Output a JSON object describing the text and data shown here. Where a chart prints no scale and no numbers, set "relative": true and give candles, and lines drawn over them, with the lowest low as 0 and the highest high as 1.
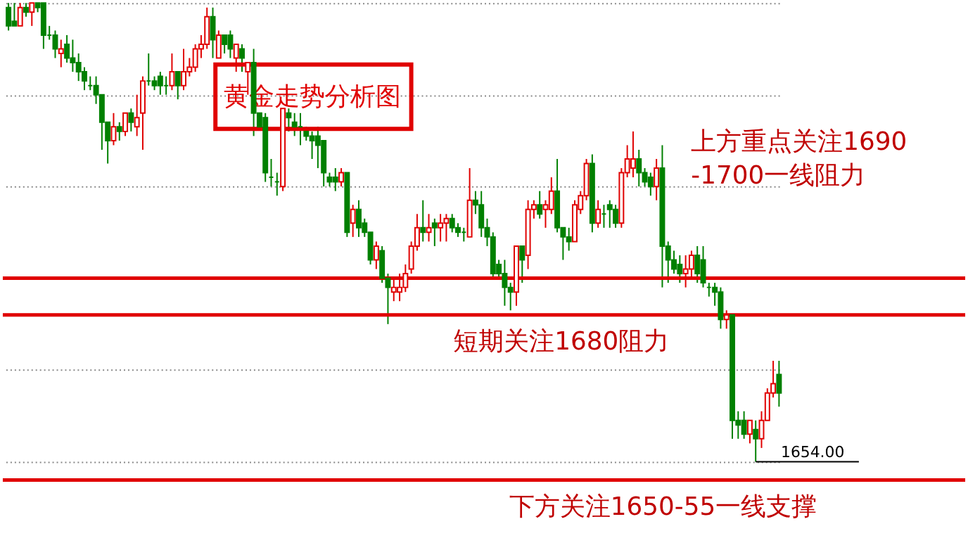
{
  "chart_data": {
    "type": "candlestick",
    "title": "黄金走势分析图",
    "relative": true,
    "tick_labels": false,
    "grid": "y",
    "categories": [
      null,
      null,
      null,
      null,
      null,
      null,
      null,
      null,
      null,
      null,
      null,
      null,
      null,
      null,
      null,
      null,
      null,
      null,
      null,
      null,
      null,
      null,
      null,
      null,
      null,
      null,
      null,
      null,
      null,
      null,
      null,
      null,
      null,
      null,
      null,
      null,
      null,
      null,
      null,
      null,
      null,
      null,
      null,
      null,
      null,
      null,
      null,
      null,
      null,
      null,
      null,
      null,
      null,
      null,
      null,
      null,
      null,
      null,
      null,
      null,
      null,
      null,
      null,
      null,
      null,
      null,
      null,
      null,
      null,
      null,
      null,
      null,
      null,
      null,
      null,
      null,
      null,
      null,
      null,
      null,
      null,
      null,
      null,
      null,
      null,
      null,
      null,
      null,
      null,
      null,
      null,
      null,
      null,
      null,
      null,
      null,
      null,
      null,
      null,
      null,
      null,
      null,
      null,
      null,
      null,
      null,
      null,
      null,
      null,
      null,
      null,
      null,
      null,
      null,
      null,
      null,
      null,
      null,
      null,
      null,
      null,
      null,
      null,
      null,
      null,
      null,
      null,
      null,
      null,
      null,
      null,
      null,
      null
    ],
    "ohlc": [
      [
        0.99,
        1,
        0.94,
        0.95
      ],
      [
        0.96,
        1,
        0.95,
        0.95
      ],
      [
        0.95,
        1,
        0.95,
        0.99
      ],
      [
        0.99,
        1,
        0.97,
        0.98
      ],
      [
        0.98,
        1,
        0.95,
        1
      ],
      [
        1,
        1,
        0.98,
        0.99
      ],
      [
        1,
        1,
        0.9,
        0.93
      ],
      [
        0.93,
        0.95,
        0.92,
        0.93
      ],
      [
        0.93,
        0.94,
        0.88,
        0.9
      ],
      [
        0.89,
        0.92,
        0.86,
        0.9
      ],
      [
        0.91,
        0.93,
        0.87,
        0.88
      ],
      [
        0.88,
        0.92,
        0.85,
        0.87
      ],
      [
        0.87,
        0.89,
        0.83,
        0.85
      ],
      [
        0.85,
        0.86,
        0.81,
        0.83
      ],
      [
        0.82,
        0.84,
        0.81,
        0.82
      ],
      [
        0.82,
        0.84,
        0.78,
        0.8
      ],
      [
        0.8,
        0.8,
        0.68,
        0.74
      ],
      [
        0.74,
        0.74,
        0.65,
        0.7
      ],
      [
        0.7,
        0.76,
        0.69,
        0.73
      ],
      [
        0.73,
        0.74,
        0.7,
        0.72
      ],
      [
        0.72,
        0.76,
        0.71,
        0.76
      ],
      [
        0.76,
        0.77,
        0.72,
        0.74
      ],
      [
        0.73,
        0.8,
        0.71,
        0.75
      ],
      [
        0.76,
        0.84,
        0.68,
        0.83
      ],
      [
        0.83,
        0.89,
        0.82,
        0.83
      ],
      [
        0.83,
        0.84,
        0.81,
        0.82
      ],
      [
        0.84,
        0.85,
        0.8,
        0.82
      ],
      [
        0.82,
        0.84,
        0.8,
        0.82
      ],
      [
        0.82,
        0.89,
        0.81,
        0.85
      ],
      [
        0.85,
        0.85,
        0.79,
        0.82
      ],
      [
        0.82,
        0.9,
        0.81,
        0.85
      ],
      [
        0.85,
        0.88,
        0.84,
        0.86
      ],
      [
        0.86,
        0.91,
        0.85,
        0.9
      ],
      [
        0.9,
        0.93,
        0.88,
        0.91
      ],
      [
        0.91,
        0.99,
        0.9,
        0.97
      ],
      [
        0.97,
        0.99,
        0.88,
        0.92
      ],
      [
        0.88,
        0.94,
        0.88,
        0.93
      ],
      [
        0.93,
        0.93,
        0.89,
        0.91
      ],
      [
        0.93,
        0.94,
        0.88,
        0.9
      ],
      [
        0.88,
        0.91,
        0.85,
        0.91
      ],
      [
        0.9,
        0.91,
        0.85,
        0.88
      ],
      [
        0.85,
        0.87,
        0.8,
        0.87
      ],
      [
        0.87,
        0.9,
        0.71,
        0.76
      ],
      [
        0.76,
        0.76,
        0.73,
        0.73
      ],
      [
        0.75,
        0.76,
        0.61,
        0.63
      ],
      [
        0.62,
        0.66,
        0.6,
        0.62
      ],
      [
        0.61,
        0.63,
        0.58,
        0.61
      ],
      [
        0.6,
        0.77,
        0.59,
        0.77
      ],
      [
        0.76,
        0.77,
        0.72,
        0.75
      ],
      [
        0.74,
        0.76,
        0.71,
        0.73
      ],
      [
        0.73,
        0.76,
        0.69,
        0.73
      ],
      [
        0.72,
        0.73,
        0.7,
        0.71
      ],
      [
        0.71,
        0.72,
        0.66,
        0.7
      ],
      [
        0.71,
        0.73,
        0.64,
        0.69
      ],
      [
        0.7,
        0.7,
        0.6,
        0.63
      ],
      [
        0.62,
        0.63,
        0.6,
        0.61
      ],
      [
        0.62,
        0.64,
        0.59,
        0.61
      ],
      [
        0.61,
        0.64,
        0.6,
        0.63
      ],
      [
        0.63,
        0.63,
        0.49,
        0.5
      ],
      [
        0.52,
        0.56,
        0.49,
        0.55
      ],
      [
        0.55,
        0.57,
        0.49,
        0.51
      ],
      [
        0.52,
        0.53,
        0.49,
        0.5
      ],
      [
        0.5,
        0.5,
        0.43,
        0.44
      ],
      [
        0.44,
        0.48,
        0.42,
        0.47
      ],
      [
        0.46,
        0.47,
        0.39,
        0.4
      ],
      [
        0.4,
        0.41,
        0.3,
        0.38
      ],
      [
        0.37,
        0.4,
        0.35,
        0.38
      ],
      [
        0.37,
        0.41,
        0.35,
        0.38
      ],
      [
        0.38,
        0.43,
        0.37,
        0.41
      ],
      [
        0.42,
        0.48,
        0.41,
        0.47
      ],
      [
        0.47,
        0.54,
        0.46,
        0.51
      ],
      [
        0.51,
        0.57,
        0.48,
        0.5
      ],
      [
        0.5,
        0.54,
        0.48,
        0.51
      ],
      [
        0.52,
        0.53,
        0.47,
        0.51
      ],
      [
        0.51,
        0.54,
        0.48,
        0.52
      ],
      [
        0.52,
        0.54,
        0.48,
        0.53
      ],
      [
        0.53,
        0.54,
        0.5,
        0.51
      ],
      [
        0.51,
        0.52,
        0.49,
        0.5
      ],
      [
        0.5,
        0.51,
        0.48,
        0.5
      ],
      [
        0.49,
        0.64,
        0.49,
        0.57
      ],
      [
        0.57,
        0.59,
        0.54,
        0.56
      ],
      [
        0.56,
        0.59,
        0.49,
        0.51
      ],
      [
        0.51,
        0.53,
        0.47,
        0.49
      ],
      [
        0.49,
        0.5,
        0.4,
        0.41
      ],
      [
        0.43,
        0.44,
        0.4,
        0.41
      ],
      [
        0.41,
        0.44,
        0.34,
        0.38
      ],
      [
        0.38,
        0.39,
        0.33,
        0.37
      ],
      [
        0.37,
        0.47,
        0.34,
        0.47
      ],
      [
        0.47,
        0.47,
        0.39,
        0.44
      ],
      [
        0.45,
        0.57,
        0.42,
        0.55
      ],
      [
        0.55,
        0.57,
        0.53,
        0.56
      ],
      [
        0.56,
        0.59,
        0.53,
        0.54
      ],
      [
        0.55,
        0.57,
        0.51,
        0.56
      ],
      [
        0.55,
        0.62,
        0.54,
        0.59
      ],
      [
        0.59,
        0.66,
        0.5,
        0.51
      ],
      [
        0.51,
        0.51,
        0.44,
        0.49
      ],
      [
        0.49,
        0.51,
        0.46,
        0.48
      ],
      [
        0.48,
        0.57,
        0.48,
        0.56
      ],
      [
        0.55,
        0.59,
        0.54,
        0.58
      ],
      [
        0.58,
        0.66,
        0.57,
        0.65
      ],
      [
        0.65,
        0.67,
        0.5,
        0.52
      ],
      [
        0.52,
        0.57,
        0.51,
        0.55
      ],
      [
        0.54,
        0.56,
        0.51,
        0.54
      ],
      [
        0.56,
        0.57,
        0.51,
        0.55
      ],
      [
        0.55,
        0.56,
        0.51,
        0.52
      ],
      [
        0.52,
        0.64,
        0.51,
        0.63
      ],
      [
        0.63,
        0.69,
        0.62,
        0.66
      ],
      [
        0.64,
        0.72,
        0.62,
        0.66
      ],
      [
        0.66,
        0.68,
        0.6,
        0.63
      ],
      [
        0.63,
        0.64,
        0.6,
        0.61
      ],
      [
        0.62,
        0.63,
        0.58,
        0.6
      ],
      [
        0.6,
        0.66,
        0.57,
        0.64
      ],
      [
        0.64,
        0.69,
        0.38,
        0.47
      ],
      [
        0.47,
        0.48,
        0.39,
        0.44
      ],
      [
        0.44,
        0.46,
        0.41,
        0.42
      ],
      [
        0.43,
        0.45,
        0.39,
        0.41
      ],
      [
        0.41,
        0.45,
        0.38,
        0.42
      ],
      [
        0.42,
        0.46,
        0.4,
        0.45
      ],
      [
        0.45,
        0.47,
        0.39,
        0.41
      ],
      [
        0.44,
        0.47,
        0.38,
        0.39
      ],
      [
        0.38,
        0.39,
        0.36,
        0.38
      ],
      [
        0.38,
        0.39,
        0.34,
        0.37
      ],
      [
        0.37,
        0.38,
        0.29,
        0.31
      ],
      [
        0.31,
        0.33,
        0.29,
        0.32
      ],
      [
        0.32,
        0.32,
        0.05,
        0.09
      ],
      [
        0.09,
        0.11,
        0.05,
        0.08
      ],
      [
        0.09,
        0.11,
        0.05,
        0.06
      ],
      [
        0.06,
        0.09,
        0.04,
        0.09
      ],
      [
        0.07,
        0.09,
        0,
        0.05
      ],
      [
        0.05,
        0.11,
        0.03,
        0.09
      ],
      [
        0.09,
        0.16,
        0.09,
        0.15
      ],
      [
        0.15,
        0.22,
        0.14,
        0.17
      ],
      [
        0.19,
        0.22,
        0.12,
        0.15
      ]
    ],
    "colors": [
      "#008000",
      "#008000",
      "#e00000",
      "#008000",
      "#e00000",
      "#008000",
      "#008000",
      "#008000",
      "#008000",
      "#e00000",
      "#008000",
      "#008000",
      "#008000",
      "#008000",
      "#008000",
      "#008000",
      "#008000",
      "#008000",
      "#e00000",
      "#008000",
      "#e00000",
      "#008000",
      "#e00000",
      "#e00000",
      "#008000",
      "#008000",
      "#008000",
      "#008000",
      "#e00000",
      "#008000",
      "#e00000",
      "#e00000",
      "#e00000",
      "#e00000",
      "#e00000",
      "#008000",
      "#e00000",
      "#008000",
      "#008000",
      "#e00000",
      "#008000",
      "#e00000",
      "#008000",
      "#008000",
      "#008000",
      "#008000",
      "#008000",
      "#e00000",
      "#008000",
      "#008000",
      "#008000",
      "#008000",
      "#008000",
      "#008000",
      "#008000",
      "#008000",
      "#008000",
      "#e00000",
      "#008000",
      "#e00000",
      "#008000",
      "#008000",
      "#008000",
      "#e00000",
      "#008000",
      "#008000",
      "#e00000",
      "#e00000",
      "#e00000",
      "#e00000",
      "#e00000",
      "#008000",
      "#e00000",
      "#008000",
      "#e00000",
      "#e00000",
      "#008000",
      "#008000",
      "#008000",
      "#e00000",
      "#008000",
      "#008000",
      "#008000",
      "#008000",
      "#008000",
      "#008000",
      "#008000",
      "#e00000",
      "#008000",
      "#e00000",
      "#e00000",
      "#008000",
      "#e00000",
      "#e00000",
      "#008000",
      "#008000",
      "#008000",
      "#e00000",
      "#e00000",
      "#e00000",
      "#008000",
      "#e00000",
      "#008000",
      "#008000",
      "#008000",
      "#e00000",
      "#e00000",
      "#e00000",
      "#008000",
      "#008000",
      "#008000",
      "#e00000",
      "#008000",
      "#008000",
      "#008000",
      "#008000",
      "#e00000",
      "#e00000",
      "#008000",
      "#008000",
      "#008000",
      "#008000",
      "#008000",
      "#e00000",
      "#008000",
      "#008000",
      "#008000",
      "#e00000",
      "#008000",
      "#e00000",
      "#e00000",
      "#e00000",
      "#008000"
    ],
    "ref_lines": [
      {
        "axis": "y",
        "value": 0.4,
        "color": "#e00000"
      },
      {
        "axis": "y",
        "value": 0.32,
        "color": "#e00000"
      },
      {
        "axis": "y",
        "value": -0.04,
        "color": "#e00000"
      }
    ],
    "annotations": [
      "上方重点关注1690-1700一线阻力",
      "短期关注1680阻力",
      "下方关注1650-55一线支撑",
      "1654.00"
    ]
  }
}
